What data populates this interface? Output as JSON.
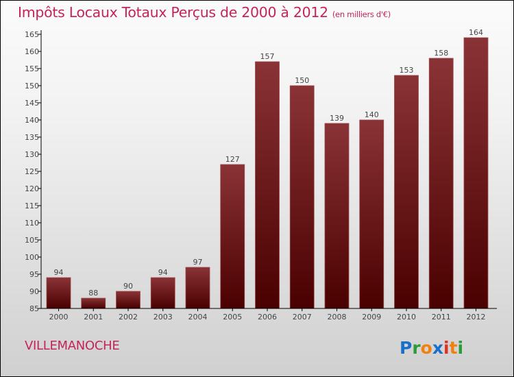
{
  "chart_data": {
    "type": "bar",
    "title": "Impôts Locaux Totaux Perçus de 2000 à 2012",
    "subtitle": "(en milliers d'€)",
    "xlabel": "",
    "ylabel": "",
    "categories": [
      "2000",
      "2001",
      "2002",
      "2003",
      "2004",
      "2005",
      "2006",
      "2007",
      "2008",
      "2009",
      "2010",
      "2011",
      "2012"
    ],
    "values": [
      94,
      88,
      90,
      94,
      97,
      127,
      157,
      150,
      139,
      140,
      153,
      158,
      164
    ],
    "ylim": [
      85,
      165
    ],
    "ytick_step": 5,
    "grid": false,
    "bar_color_top": "#8a3336",
    "bar_color_bottom": "#4a0000"
  },
  "commune": "VILLEMANOCHE",
  "logo": {
    "text": "Proxiti",
    "colors": [
      "#1a6fc9",
      "#2a9a3a",
      "#f08010",
      "#1a6fc9",
      "#e03020",
      "#f08010",
      "#2a9a3a"
    ]
  }
}
